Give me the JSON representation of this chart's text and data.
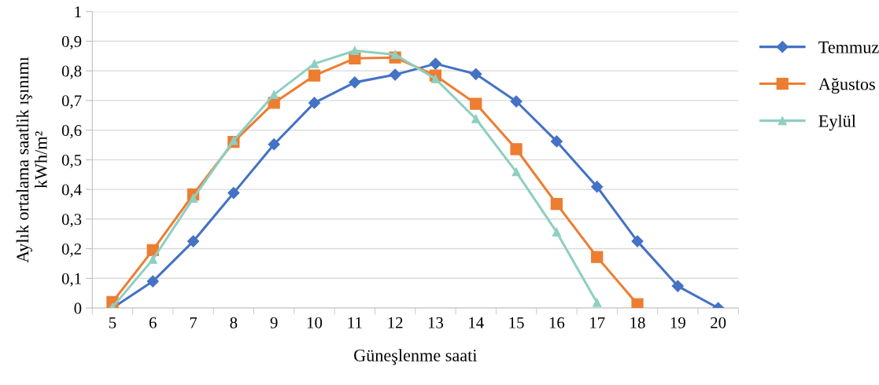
{
  "chart_data": {
    "type": "line",
    "xlabel": "Güneşlenme saati",
    "ylabel": "Aylık ortalama saatlik ışınımı\nkWh/m²",
    "categories": [
      "5",
      "6",
      "7",
      "8",
      "9",
      "10",
      "11",
      "12",
      "13",
      "14",
      "15",
      "16",
      "17",
      "18",
      "19",
      "20"
    ],
    "series": [
      {
        "name": "Temmuz",
        "color": "#4472c4",
        "marker": "diamond",
        "values": [
          0.0,
          0.09,
          0.225,
          0.388,
          0.552,
          0.692,
          0.761,
          0.787,
          0.824,
          0.789,
          0.697,
          0.562,
          0.409,
          0.225,
          0.074,
          0.0
        ]
      },
      {
        "name": "Ağustos",
        "color": "#ed7d31",
        "marker": "square",
        "values": [
          0.02,
          0.195,
          0.383,
          0.56,
          0.692,
          0.784,
          0.842,
          0.845,
          0.784,
          0.689,
          0.536,
          0.351,
          0.172,
          0.013,
          null,
          null
        ]
      },
      {
        "name": "Eylül",
        "color": "#8ecfc1",
        "marker": "triangle",
        "values": [
          0.003,
          0.164,
          0.37,
          0.565,
          0.72,
          0.824,
          0.868,
          0.855,
          0.773,
          0.638,
          0.459,
          0.256,
          0.018,
          null,
          null,
          null
        ]
      }
    ],
    "ylim": [
      0,
      1
    ],
    "yticks": [
      {
        "value": 0,
        "label": "0"
      },
      {
        "value": 0.1,
        "label": "0,1"
      },
      {
        "value": 0.2,
        "label": "0,2"
      },
      {
        "value": 0.3,
        "label": "0,3"
      },
      {
        "value": 0.4,
        "label": "0,4"
      },
      {
        "value": 0.5,
        "label": "0,5"
      },
      {
        "value": 0.6,
        "label": "0,6"
      },
      {
        "value": 0.7,
        "label": "0,7"
      },
      {
        "value": 0.8,
        "label": "0,8"
      },
      {
        "value": 0.9,
        "label": "0,9"
      },
      {
        "value": 1,
        "label": "1"
      }
    ],
    "grid": "y",
    "legend": "right",
    "line_style": "solid"
  }
}
